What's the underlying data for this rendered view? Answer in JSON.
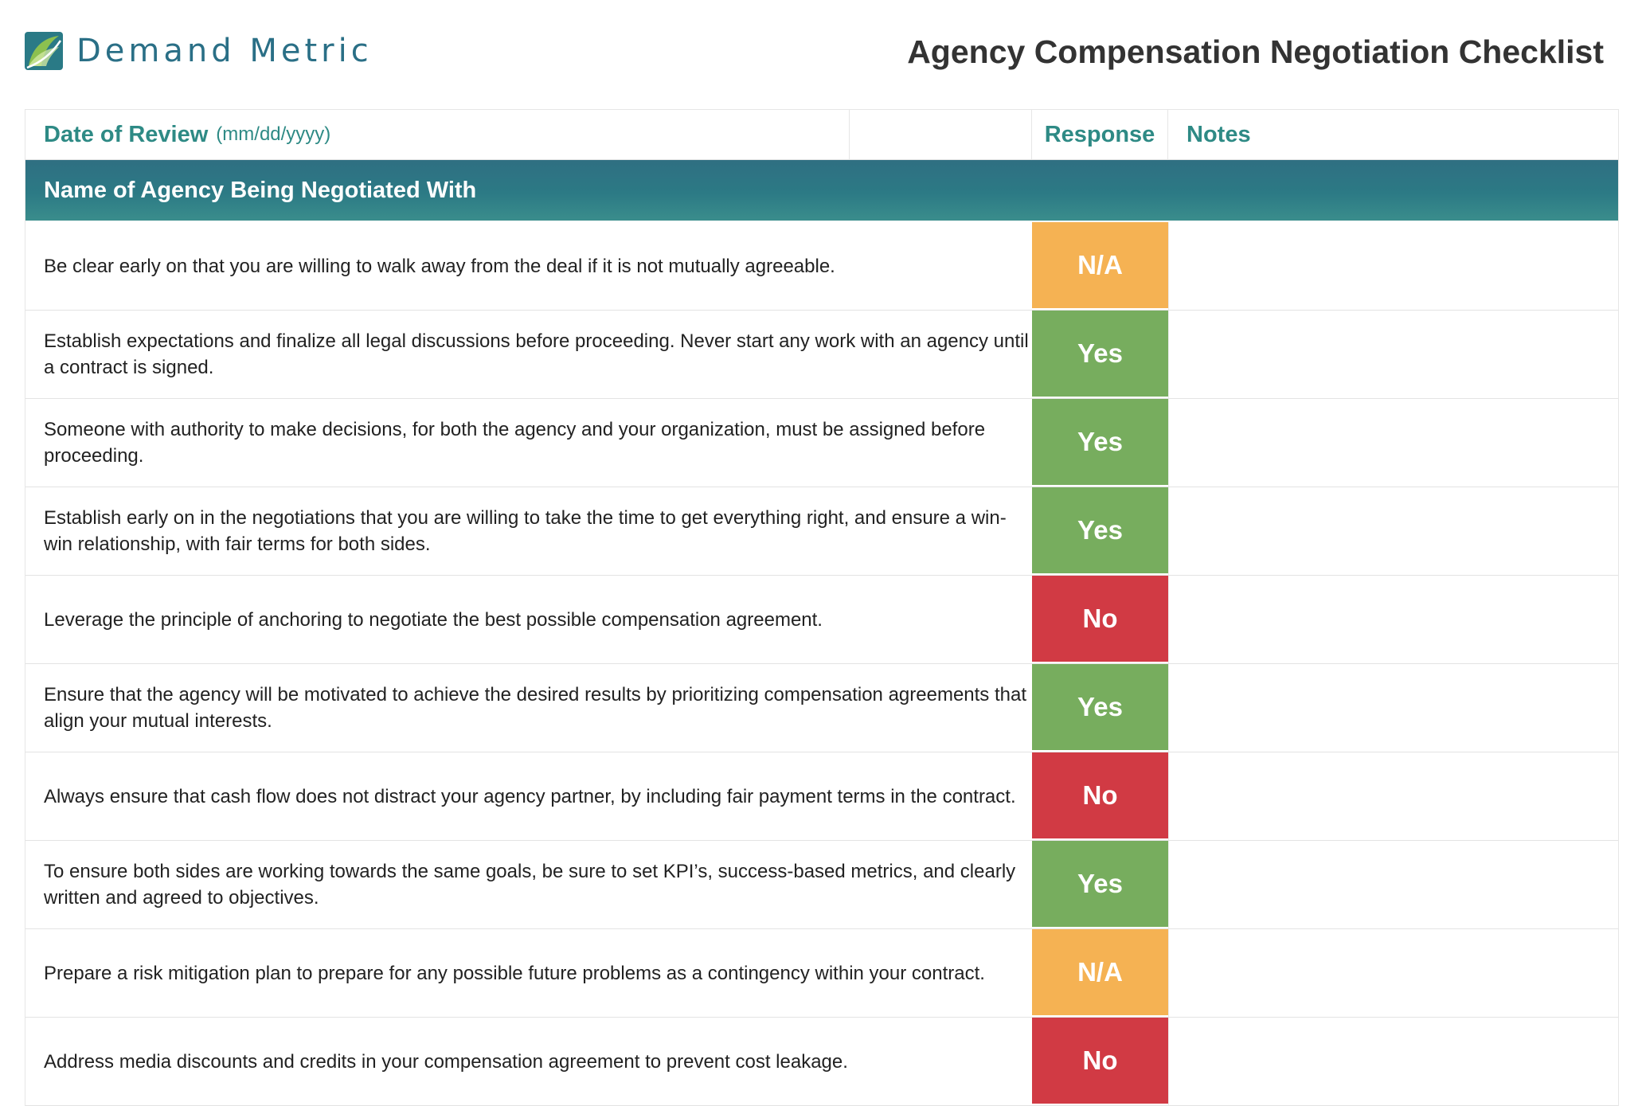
{
  "brand": {
    "name": "Demand Metric"
  },
  "title": "Agency Compensation Negotiation Checklist",
  "header": {
    "date_label": "Date of Review",
    "date_hint": "(mm/dd/yyyy)",
    "date_value": "",
    "response_label": "Response",
    "notes_label": "Notes"
  },
  "agency_band": {
    "label": "Name of Agency Being Negotiated With"
  },
  "colors": {
    "yes": "#77ad5e",
    "no": "#d13a44",
    "na": "#f5b253",
    "accent": "#2e8a85"
  },
  "items": [
    {
      "text": "Be clear early on that you are willing to walk away from the deal if it is not mutually agreeable.",
      "response": "N/A",
      "notes": ""
    },
    {
      "text": "Establish expectations and finalize all legal discussions before proceeding. Never start any work with an agency until a contract is signed.",
      "response": "Yes",
      "notes": ""
    },
    {
      "text": "Someone with authority to make decisions, for both the agency and your organization, must be assigned before proceeding.",
      "response": "Yes",
      "notes": ""
    },
    {
      "text": "Establish early on in the negotiations that you are willing to take the time to get everything right, and ensure a win-win relationship, with fair terms for both sides.",
      "response": "Yes",
      "notes": ""
    },
    {
      "text": "Leverage the principle of anchoring to negotiate the best possible compensation agreement.",
      "response": "No",
      "notes": ""
    },
    {
      "text": "Ensure that the agency will be motivated to achieve the desired results by prioritizing compensation agreements that align your mutual interests.",
      "response": "Yes",
      "notes": ""
    },
    {
      "text": "Always ensure that cash flow does not distract your agency partner, by including fair payment terms in the contract.",
      "response": "No",
      "notes": ""
    },
    {
      "text": "To ensure both sides are working towards the same goals, be sure to set KPI’s, success-based metrics, and clearly written and agreed to objectives.",
      "response": "Yes",
      "notes": ""
    },
    {
      "text": "Prepare a risk mitigation plan to prepare for any possible future problems as a contingency within your contract.",
      "response": "N/A",
      "notes": ""
    },
    {
      "text": "Address media discounts and credits in your compensation agreement to prevent cost leakage.",
      "response": "No",
      "notes": ""
    }
  ]
}
